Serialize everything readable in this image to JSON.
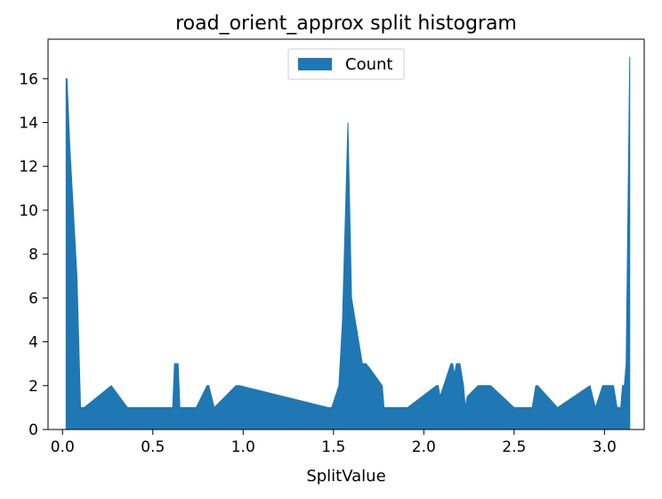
{
  "chart_data": {
    "type": "area",
    "title": "road_orient_approx split histogram",
    "xlabel": "SplitValue",
    "ylabel": "",
    "xlim": [
      -0.08,
      3.22
    ],
    "ylim": [
      0,
      17.8
    ],
    "xticks": [
      0.0,
      0.5,
      1.0,
      1.5,
      2.0,
      2.5,
      3.0
    ],
    "xtick_labels": [
      "0.0",
      "0.5",
      "1.0",
      "1.5",
      "2.0",
      "2.5",
      "3.0"
    ],
    "yticks": [
      0,
      2,
      4,
      6,
      8,
      10,
      12,
      14,
      16
    ],
    "ytick_labels": [
      "0",
      "2",
      "4",
      "6",
      "8",
      "10",
      "12",
      "14",
      "16"
    ],
    "grid": false,
    "legend_position": "upper-center",
    "series": [
      {
        "name": "Count",
        "color": "#1f77b4",
        "x": [
          0.02,
          0.025,
          0.04,
          0.06,
          0.08,
          0.1,
          0.12,
          0.27,
          0.36,
          0.61,
          0.62,
          0.64,
          0.65,
          0.74,
          0.8,
          0.81,
          0.84,
          0.96,
          0.98,
          1.47,
          1.49,
          1.53,
          1.55,
          1.57,
          1.58,
          1.6,
          1.62,
          1.66,
          1.68,
          1.7,
          1.77,
          1.78,
          1.8,
          1.91,
          2.07,
          2.08,
          2.09,
          2.15,
          2.16,
          2.17,
          2.18,
          2.19,
          2.2,
          2.22,
          2.23,
          2.24,
          2.3,
          2.34,
          2.35,
          2.37,
          2.5,
          2.52,
          2.6,
          2.62,
          2.63,
          2.74,
          2.92,
          2.95,
          2.99,
          3.0,
          3.02,
          3.05,
          3.07,
          3.09,
          3.1,
          3.11,
          3.12,
          3.14
        ],
        "values": [
          16,
          16,
          13,
          10,
          7,
          1,
          1,
          2,
          1,
          1,
          3,
          3,
          1,
          1,
          2,
          2,
          1,
          2,
          2,
          1,
          1,
          2,
          5,
          11,
          14,
          6,
          5,
          3,
          3,
          2.8,
          2,
          1,
          1,
          1,
          2,
          2,
          1.5,
          3,
          3,
          2.5,
          3,
          3,
          3,
          2,
          1,
          1.5,
          2,
          2,
          2,
          2,
          1,
          1,
          1,
          2,
          2,
          1,
          2,
          1,
          2,
          2,
          2,
          2,
          1,
          1,
          2,
          2,
          3,
          17
        ]
      }
    ]
  }
}
